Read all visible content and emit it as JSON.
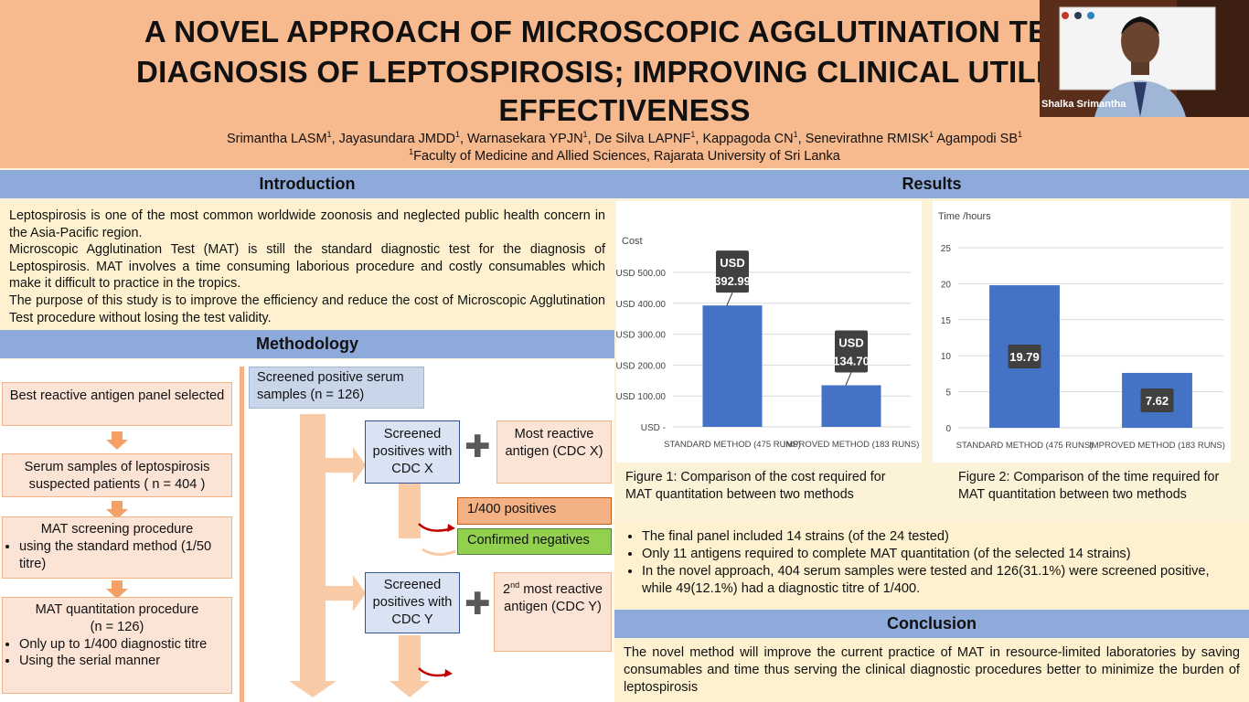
{
  "header": {
    "title_lines": [
      "A NOVEL APPROACH OF MICROSCOPIC AGGLUTINATION TEST I",
      "DIAGNOSIS OF LEPTOSPIROSIS; IMPROVING CLINICAL UTILITY A",
      "EFFECTIVENESS"
    ],
    "authors": [
      "Srimantha LASM",
      "1",
      ", Jayasundara JMDD",
      "1",
      ", Warnasekara YPJN",
      "1",
      ", De Silva LAPNF",
      "1",
      ", Kappagoda CN",
      "1",
      ", Senevirathne RMISK",
      "1",
      " Agampodi SB",
      "1"
    ],
    "affiliation_sup": "1",
    "affiliation": "Faculty of Medicine and Allied Sciences, Rajarata University of Sri Lanka"
  },
  "webcam": {
    "name": "Shalka Srimantha"
  },
  "introduction": {
    "heading": "Introduction",
    "paragraphs": [
      "Leptospirosis is one of the most common worldwide zoonosis and neglected public health concern in the Asia-Pacific region.",
      "Microscopic Agglutination Test (MAT) is still the standard diagnostic test for the diagnosis of Leptospirosis. MAT involves a time consuming laborious procedure and costly consumables which make it difficult to practice in the tropics.",
      "The purpose of this study is to improve the efficiency and reduce the cost of Microscopic Agglutination Test procedure without losing the test validity."
    ]
  },
  "methodology": {
    "heading": "Methodology",
    "step1": "Best reactive antigen panel selected",
    "step2": "Serum samples of leptospirosis suspected patients ( n = 404 )",
    "step3_title": "MAT screening procedure",
    "step3_bullets": [
      "using the standard method (1/50 titre)"
    ],
    "step4_title": "MAT quantitation procedure",
    "step4_n": "(n = 126)",
    "step4_bullets": [
      "Only up to 1/400 diagnostic titre",
      "Using the serial manner"
    ],
    "screened": "Screened positive serum samples (n = 126)",
    "cdcx_box": "Screened positives with CDC X",
    "most_reactive": "Most reactive antigen (CDC X)",
    "positives_1400": "1/400 positives",
    "confirmed_neg": "Confirmed negatives",
    "cdcy_box": "Screened positives with CDC Y",
    "second_num": "2",
    "second_sup": "nd",
    "second_rest": " most reactive antigen (CDC Y)",
    "plus": "✚"
  },
  "results": {
    "heading": "Results",
    "figure1_caption": "Figure 1: Comparison of the cost required for MAT quantitation between two methods",
    "figure2_caption": "Figure 2: Comparison of the time required for MAT quantitation between two methods",
    "bullets": [
      "The final panel included 14 strains (of the 24 tested)",
      "Only 11 antigens required to complete MAT quantitation (of the selected 14 strains)",
      "In the novel approach, 404 serum samples were tested and 126(31.1%) were screened positive, while 49(12.1%) had a diagnostic titre of 1/400."
    ]
  },
  "conclusion": {
    "heading": "Conclusion",
    "text": "The novel method will improve the current practice of MAT in resource-limited laboratories by saving consumables and time thus serving the clinical diagnostic procedures better to minimize the burden of leptospirosis"
  },
  "colors": {
    "bar": "#4472c4",
    "header": "#f7b98e",
    "section": "#8eaadb",
    "cream": "#fdf1cf"
  },
  "chart_data": [
    {
      "type": "bar",
      "ylabel": "Cost",
      "categories": [
        "STANDARD METHOD (475 RUNS)",
        "IMPROVED METHOD (183 RUNS)"
      ],
      "values": [
        392.99,
        134.7
      ],
      "data_labels": [
        [
          "USD",
          "392.99"
        ],
        [
          "USD",
          "134.70"
        ]
      ],
      "yticks": [
        "USD -",
        "USD 100.00",
        "USD 200.00",
        "USD 300.00",
        "USD 400.00",
        "USD 500.00"
      ],
      "ylim": [
        0,
        500
      ],
      "grid": true
    },
    {
      "type": "bar",
      "ylabel": "Time /hours",
      "categories": [
        "STANDARD METHOD (475 RUNS)",
        "IMPROVED METHOD (183 RUNS)"
      ],
      "values": [
        19.79,
        7.62
      ],
      "data_labels": [
        [
          "19.79"
        ],
        [
          "7.62"
        ]
      ],
      "yticks": [
        "0",
        "5",
        "10",
        "15",
        "20",
        "25"
      ],
      "ylim": [
        0,
        25
      ],
      "grid": true
    }
  ]
}
